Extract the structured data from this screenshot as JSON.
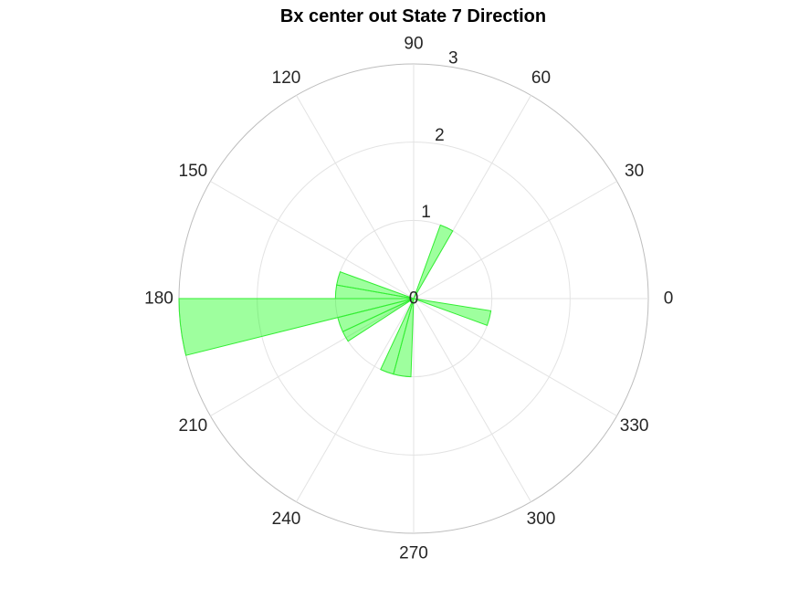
{
  "chart_data": {
    "type": "polar-histogram",
    "title": "Bx  center out State 7 Direction",
    "theta_ticks": [
      0,
      30,
      60,
      90,
      120,
      150,
      180,
      210,
      240,
      270,
      300,
      330
    ],
    "r_ticks": [
      0,
      1,
      2,
      3
    ],
    "r_max": 3,
    "grid": true,
    "bins": [
      {
        "theta_start": 60,
        "theta_end": 70,
        "count": 1
      },
      {
        "theta_start": 160,
        "theta_end": 170,
        "count": 1
      },
      {
        "theta_start": 170,
        "theta_end": 180,
        "count": 1
      },
      {
        "theta_start": 180,
        "theta_end": 194,
        "count": 3
      },
      {
        "theta_start": 194,
        "theta_end": 205,
        "count": 1
      },
      {
        "theta_start": 205,
        "theta_end": 213,
        "count": 1
      },
      {
        "theta_start": 245,
        "theta_end": 255,
        "count": 1
      },
      {
        "theta_start": 255,
        "theta_end": 268,
        "count": 1
      },
      {
        "theta_start": 340,
        "theta_end": 351,
        "count": 1
      }
    ],
    "colors": {
      "fill": "#00ff00",
      "fill_opacity": 0.38,
      "edge": "#33ee33",
      "grid": "#e3e3e3",
      "outer": "#bdbdbd",
      "text": "#262626"
    }
  }
}
